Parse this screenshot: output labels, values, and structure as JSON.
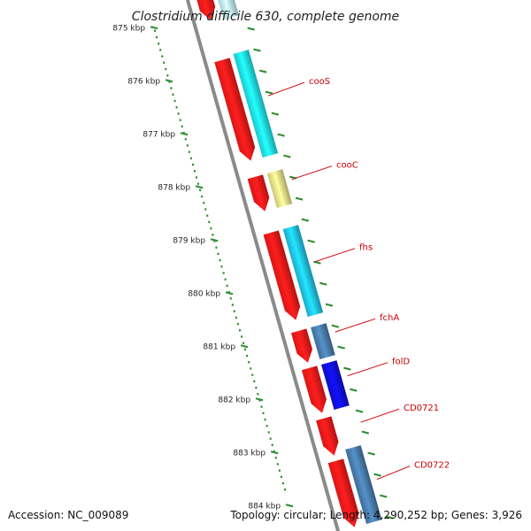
{
  "title": "Clostridium difficile 630, complete genome",
  "accession": "Accession: NC_009089",
  "summary": "Topology: circular; Length: 4,290,252 bp; Genes: 3,926",
  "colors": {
    "backbone": "#8a8a8a",
    "ruler_dots": "#2e8b2e",
    "cds_forward": "#ff1a1a",
    "cds_reverse": "#20e8f0",
    "cds_yellow": "#f0e68c",
    "cds_steelblue": "#4a7fb0",
    "cds_blue": "#1010e0",
    "gene_label": "#cc0000"
  },
  "ruler": [
    {
      "label": "875 kbp",
      "kbp": 875
    },
    {
      "label": "876 kbp",
      "kbp": 876
    },
    {
      "label": "877 kbp",
      "kbp": 877
    },
    {
      "label": "878 kbp",
      "kbp": 878
    },
    {
      "label": "879 kbp",
      "kbp": 879
    },
    {
      "label": "880 kbp",
      "kbp": 880
    },
    {
      "label": "881 kbp",
      "kbp": 881
    },
    {
      "label": "882 kbp",
      "kbp": 882
    },
    {
      "label": "883 kbp",
      "kbp": 883
    },
    {
      "label": "884 kbp",
      "kbp": 884
    }
  ],
  "genes": [
    {
      "label": "",
      "start_kbp": 874.55,
      "end_kbp": 875.15,
      "track": "forward",
      "color": "#ff1a1a"
    },
    {
      "label": "",
      "start_kbp": 874.55,
      "end_kbp": 875.2,
      "track": "reverse",
      "color": "#c0f6fa"
    },
    {
      "label": "cooS",
      "start_kbp": 875.9,
      "end_kbp": 877.8,
      "track": "forward",
      "color": "#ff1a1a"
    },
    {
      "label": "",
      "start_kbp": 875.85,
      "end_kbp": 877.8,
      "track": "reverse",
      "color": "#20e8f0"
    },
    {
      "label": "cooC",
      "start_kbp": 878.1,
      "end_kbp": 878.75,
      "track": "forward",
      "color": "#ff1a1a"
    },
    {
      "label": "",
      "start_kbp": 878.1,
      "end_kbp": 878.75,
      "track": "reverse",
      "color": "#f0e68c"
    },
    {
      "label": "fhs",
      "start_kbp": 879.15,
      "end_kbp": 880.8,
      "track": "forward",
      "color": "#ff1a1a"
    },
    {
      "label": "",
      "start_kbp": 879.15,
      "end_kbp": 880.8,
      "track": "reverse",
      "color": "#20c8f0"
    },
    {
      "label": "fchA",
      "start_kbp": 881.0,
      "end_kbp": 881.6,
      "track": "forward",
      "color": "#ff1a1a"
    },
    {
      "label": "",
      "start_kbp": 881.0,
      "end_kbp": 881.6,
      "track": "reverse",
      "color": "#4a7fb0"
    },
    {
      "label": "folD",
      "start_kbp": 881.7,
      "end_kbp": 882.55,
      "track": "forward",
      "color": "#ff1a1a"
    },
    {
      "label": "",
      "start_kbp": 881.7,
      "end_kbp": 882.55,
      "track": "reverse",
      "color": "#1010e0"
    },
    {
      "label": "CD0721",
      "start_kbp": 882.65,
      "end_kbp": 883.35,
      "track": "forward",
      "color": "#ff1a1a"
    },
    {
      "label": "CD0722",
      "start_kbp": 883.45,
      "end_kbp": 884.7,
      "track": "forward",
      "color": "#ff1a1a"
    },
    {
      "label": "",
      "start_kbp": 883.3,
      "end_kbp": 884.7,
      "track": "reverse",
      "color": "#4a7fb0"
    }
  ]
}
